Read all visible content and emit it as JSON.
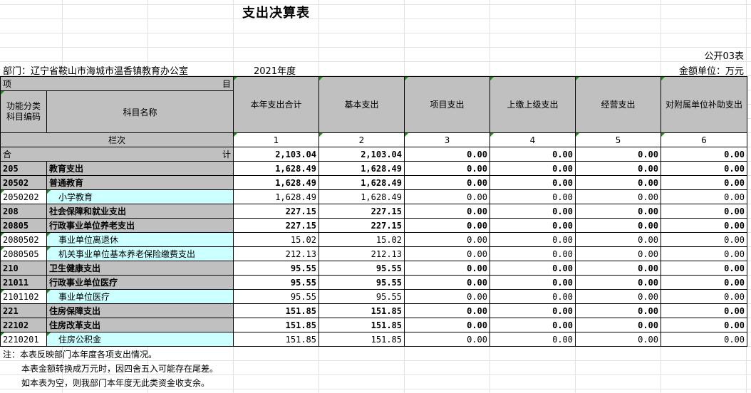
{
  "title": "支出决算表",
  "form_no": "公开03表",
  "department": "部门：辽宁省鞍山市海城市温香镇教育办公室",
  "year": "2021年度",
  "unit": "金额单位：万元",
  "header": {
    "item_left": "项",
    "item_right": "目",
    "code_col": "功能分类科目编码",
    "name_col": "科目名称",
    "col_total": "本年支出合计",
    "col_basic": "基本支出",
    "col_project": "项目支出",
    "col_upper": "上缴上级支出",
    "col_business": "经营支出",
    "col_subsidy": "对附属单位补助支出",
    "seq_label": "栏次",
    "seq": [
      "1",
      "2",
      "3",
      "4",
      "5",
      "6"
    ]
  },
  "total_row": {
    "left": "合",
    "right": "计",
    "values": [
      "2,103.04",
      "2,103.04",
      "0.00",
      "0.00",
      "0.00",
      "0.00"
    ]
  },
  "rows": [
    {
      "code": "205",
      "name": "教育支出",
      "values": [
        "1,628.49",
        "1,628.49",
        "0.00",
        "0.00",
        "0.00",
        "0.00"
      ]
    },
    {
      "code": "20502",
      "name": "普通教育",
      "values": [
        "1,628.49",
        "1,628.49",
        "0.00",
        "0.00",
        "0.00",
        "0.00"
      ]
    },
    {
      "code": "2050202",
      "name": "小学教育",
      "values": [
        "1,628.49",
        "1,628.49",
        "0.00",
        "0.00",
        "0.00",
        "0.00"
      ]
    },
    {
      "code": "208",
      "name": "社会保障和就业支出",
      "values": [
        "227.15",
        "227.15",
        "0.00",
        "0.00",
        "0.00",
        "0.00"
      ]
    },
    {
      "code": "20805",
      "name": "行政事业单位养老支出",
      "values": [
        "227.15",
        "227.15",
        "0.00",
        "0.00",
        "0.00",
        "0.00"
      ]
    },
    {
      "code": "2080502",
      "name": "事业单位离退休",
      "values": [
        "15.02",
        "15.02",
        "0.00",
        "0.00",
        "0.00",
        "0.00"
      ]
    },
    {
      "code": "2080505",
      "name": "机关事业单位基本养老保险缴费支出",
      "values": [
        "212.13",
        "212.13",
        "0.00",
        "0.00",
        "0.00",
        "0.00"
      ]
    },
    {
      "code": "210",
      "name": "卫生健康支出",
      "values": [
        "95.55",
        "95.55",
        "0.00",
        "0.00",
        "0.00",
        "0.00"
      ]
    },
    {
      "code": "21011",
      "name": "行政事业单位医疗",
      "values": [
        "95.55",
        "95.55",
        "0.00",
        "0.00",
        "0.00",
        "0.00"
      ]
    },
    {
      "code": "2101102",
      "name": "事业单位医疗",
      "values": [
        "95.55",
        "95.55",
        "0.00",
        "0.00",
        "0.00",
        "0.00"
      ]
    },
    {
      "code": "221",
      "name": "住房保障支出",
      "values": [
        "151.85",
        "151.85",
        "0.00",
        "0.00",
        "0.00",
        "0.00"
      ]
    },
    {
      "code": "22102",
      "name": "住房改革支出",
      "values": [
        "151.85",
        "151.85",
        "0.00",
        "0.00",
        "0.00",
        "0.00"
      ]
    },
    {
      "code": "2210201",
      "name": "住房公积金",
      "values": [
        "151.85",
        "151.85",
        "0.00",
        "0.00",
        "0.00",
        "0.00"
      ]
    }
  ],
  "notes": [
    "注：本表反映部门本年度各项支出情况。",
    "本表金额转换成万元时，因四舍五入可能存在尾差。",
    "如本表为空，则我部门本年度无此类资金收支余。"
  ]
}
